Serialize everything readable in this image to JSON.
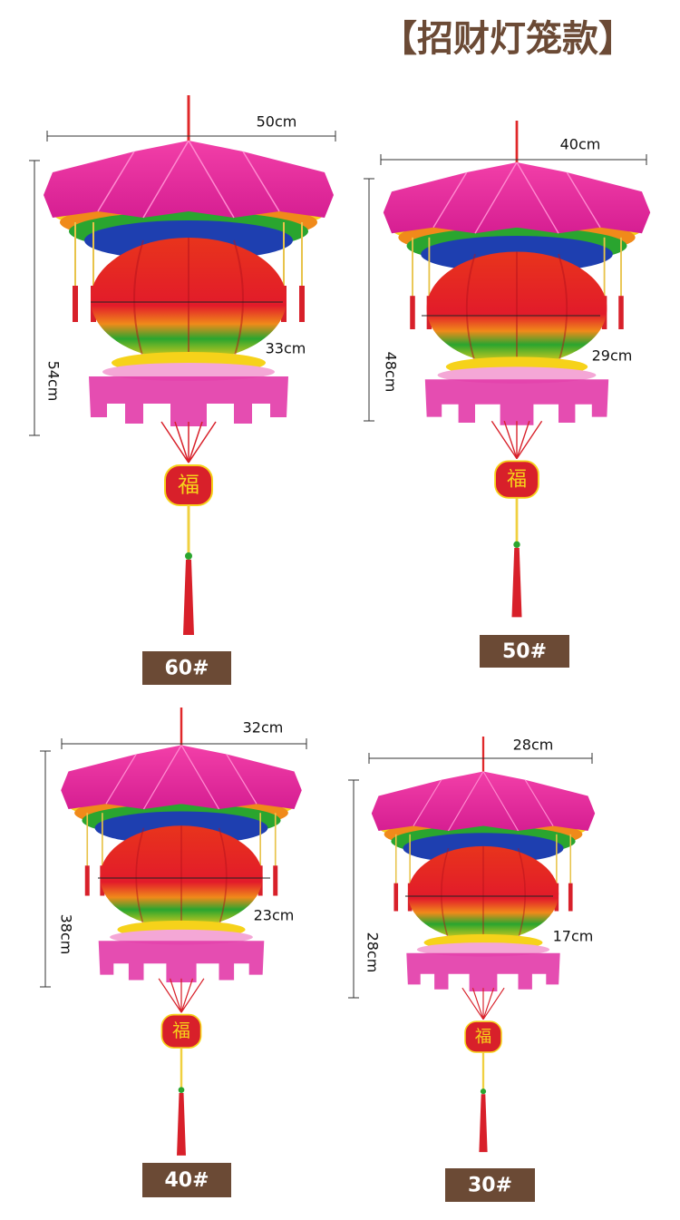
{
  "header": {
    "title": "【招财灯笼款】"
  },
  "items": [
    {
      "width": "50cm",
      "height": "54cm",
      "diameter": "33cm",
      "tag": "福",
      "label": "60#"
    },
    {
      "width": "40cm",
      "height": "48cm",
      "diameter": "29cm",
      "tag": "福",
      "label": "50#"
    },
    {
      "width": "32cm",
      "height": "38cm",
      "diameter": "23cm",
      "tag": "福",
      "label": "40#"
    },
    {
      "width": "28cm",
      "height": "28cm",
      "diameter": "17cm",
      "tag": "福",
      "label": "30#"
    }
  ]
}
